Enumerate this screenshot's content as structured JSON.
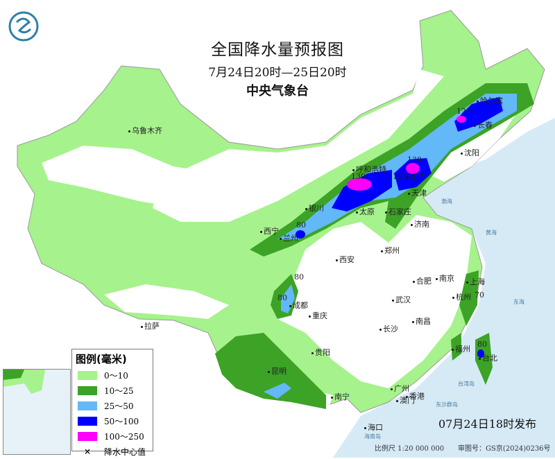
{
  "header": {
    "title": "全国降水量预报图",
    "period": "7月24日20时—25日20时",
    "agency": "中央气象台"
  },
  "legend": {
    "title": "图例(毫米)",
    "items": [
      {
        "label": "0～10",
        "color": "#a6f28c"
      },
      {
        "label": "10～25",
        "color": "#3ca326"
      },
      {
        "label": "25～50",
        "color": "#63b8f8"
      },
      {
        "label": "50～100",
        "color": "#0000fe"
      },
      {
        "label": "100～250",
        "color": "#fc00fc"
      }
    ],
    "center_label": "降水中心值",
    "center_icon": "x-mark-icon"
  },
  "cities": [
    "乌鲁木齐",
    "拉萨",
    "西宁",
    "兰州",
    "银川",
    "呼和浩特",
    "太原",
    "石家庄",
    "北京",
    "天津",
    "济南",
    "郑州",
    "西安",
    "成都",
    "重庆",
    "贵阳",
    "昆明",
    "南宁",
    "广州",
    "澳门",
    "香港",
    "海口",
    "长沙",
    "武汉",
    "南昌",
    "合肥",
    "南京",
    "上海",
    "杭州",
    "福州",
    "台北",
    "沈阳",
    "长春",
    "哈尔滨"
  ],
  "rain_centers": [
    "130",
    "130",
    "130",
    "120",
    "80",
    "80",
    "80",
    "70",
    "80"
  ],
  "seas": [
    "渤海",
    "黄海",
    "东海",
    "台湾岛",
    "东沙群岛",
    "海南岛"
  ],
  "footer": {
    "issued": "07月24日18时发布",
    "scale": "比例尺 1:20 000 000",
    "review_no": "审图号：GS京(2024)0236号"
  },
  "colors": {
    "sea": "#d6eaf6",
    "land_dry": "#ffffff",
    "border": "#888888"
  }
}
